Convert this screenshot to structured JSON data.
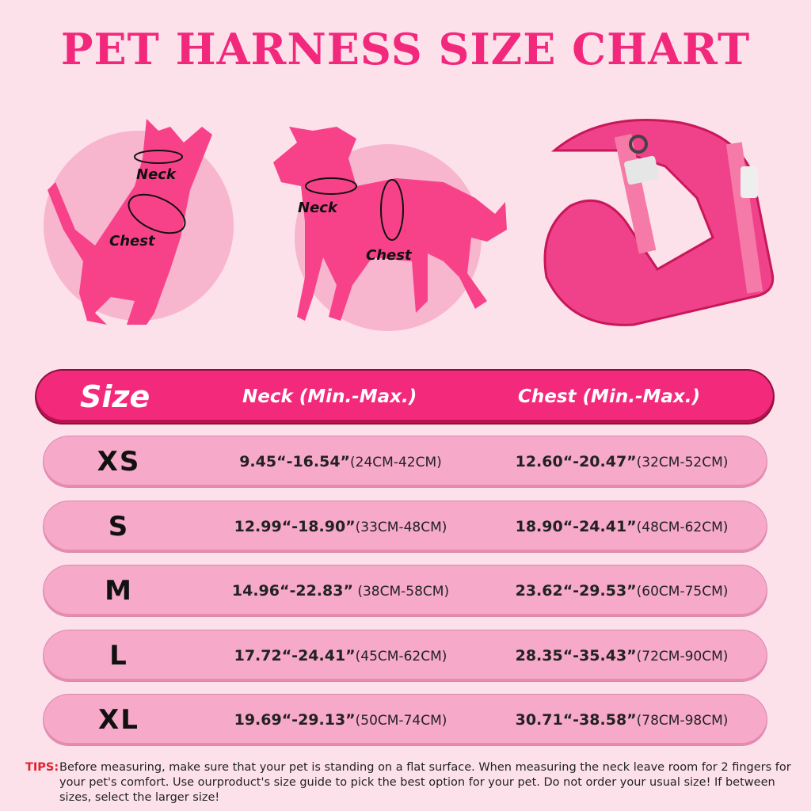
{
  "header": {
    "title": "PET HARNESS SIZE CHART"
  },
  "illustrations": {
    "cat": {
      "neck": "Neck",
      "chest": "Chest"
    },
    "dog": {
      "neck": "Neck",
      "chest": "Chest"
    }
  },
  "table": {
    "columns": [
      "Size",
      "Neck (Min.-Max.)",
      "Chest (Min.-Max.)"
    ],
    "rows": [
      {
        "size": "XS",
        "neck": "9.45“-16.54”",
        "neck_cm": "(24CM-42CM)",
        "chest": "12.60“-20.47”",
        "chest_cm": "(32CM-52CM)"
      },
      {
        "size": "S",
        "neck": "12.99“-18.90”",
        "neck_cm": "(33CM-48CM)",
        "chest": "18.90“-24.41”",
        "chest_cm": "(48CM-62CM)"
      },
      {
        "size": "M",
        "neck": "14.96“-22.83”",
        "neck_cm": " (38CM-58CM)",
        "chest": "23.62“-29.53”",
        "chest_cm": "(60CM-75CM)"
      },
      {
        "size": "L",
        "neck": "17.72“-24.41”",
        "neck_cm": "(45CM-62CM)",
        "chest": "28.35“-35.43”",
        "chest_cm": "(72CM-90CM)"
      },
      {
        "size": "XL",
        "neck": "19.69“-29.13”",
        "neck_cm": "(50CM-74CM)",
        "chest": "30.71“-38.58”",
        "chest_cm": "(78CM-98CM)"
      }
    ]
  },
  "tips": {
    "label": "TIPS:",
    "text": "Before measuring, make sure that your pet is standing on a flat surface. When measuring the neck leave room for 2 fingers for your pet's comfort. Use ourproduct's size guide to pick the best option for your pet. Do not order your usual size! If between sizes, select the larger size!"
  }
}
